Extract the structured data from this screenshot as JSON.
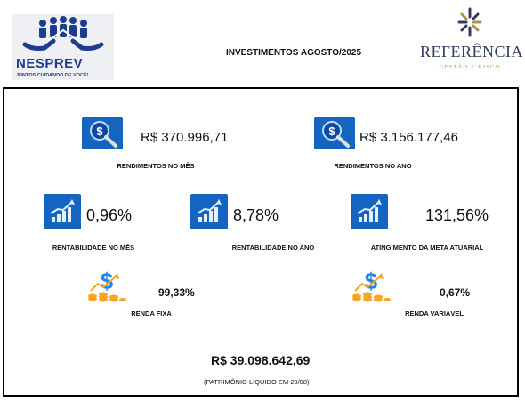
{
  "header": {
    "left_logo": {
      "brand": "NESPREV",
      "slogan": "JUNTOS CUIDANDO DE VOCÊ!"
    },
    "title": "INVESTIMENTOS AGOSTO/2025",
    "right_logo": {
      "name": "REFERÊNCIA",
      "subtitle": "GESTÃO E RISCO"
    }
  },
  "cards": {
    "rendimentos_mes": {
      "value": "R$ 370.996,71",
      "label": "RENDIMENTOS NO MÊS",
      "icon": "money-search-icon"
    },
    "rendimentos_ano": {
      "value": "R$ 3.156.177,46",
      "label": "RENDIMENTOS NO ANO",
      "icon": "money-search-icon"
    },
    "rentabilidade_mes": {
      "value": "0,96%",
      "label": "RENTABILIDADE NO MÊS",
      "icon": "growth-chart-icon"
    },
    "rentabilidade_ano": {
      "value": "8,78%",
      "label": "RENTABILIDADE NO ANO",
      "icon": "growth-chart-icon"
    },
    "meta_atuarial": {
      "value": "131,56%",
      "label": "ATINGIMENTO DA META ATUARIAL",
      "icon": "growth-chart-icon"
    },
    "renda_fixa": {
      "value": "99,33%",
      "label": "RENDA FIXA",
      "icon": "dollar-coins-icon"
    },
    "renda_variavel": {
      "value": "0,67%",
      "label": "RENDA VARIÁVEL",
      "icon": "dollar-coins-icon"
    }
  },
  "patrimonio": {
    "value": "R$ 39.098.642,69",
    "caption": "(PATRIMÔNIO LÍQUIDO EM 29/08)"
  },
  "colors": {
    "nesprev_blue": "#1c3c8c",
    "tile_blue": "#1565c0",
    "coin_orange": "#f5a623",
    "frame": "#000000"
  }
}
